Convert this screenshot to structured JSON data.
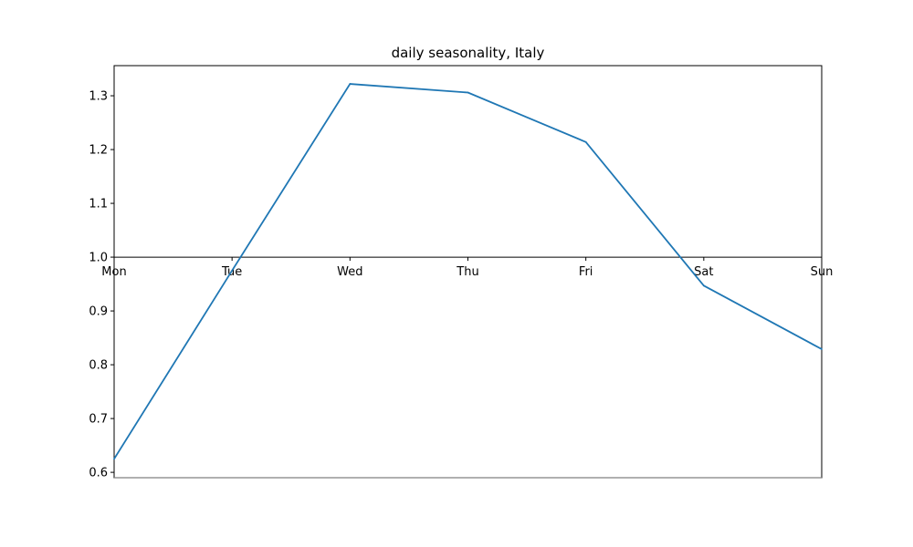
{
  "chart_data": {
    "type": "line",
    "title": "daily seasonality, Italy",
    "xlabel": "",
    "ylabel": "",
    "categories": [
      "Mon",
      "Tue",
      "Wed",
      "Thu",
      "Fri",
      "Sat",
      "Sun"
    ],
    "series": [
      {
        "values": [
          0.625,
          0.975,
          1.322,
          1.306,
          1.214,
          0.947,
          0.829
        ]
      }
    ],
    "y_ticks": [
      "0.6",
      "0.7",
      "0.8",
      "0.9",
      "1.0",
      "1.1",
      "1.2",
      "1.3"
    ],
    "ylim": [
      0.59,
      1.356
    ],
    "reference_line": 1.0,
    "grid": false,
    "line_color": "#1f77b4"
  }
}
